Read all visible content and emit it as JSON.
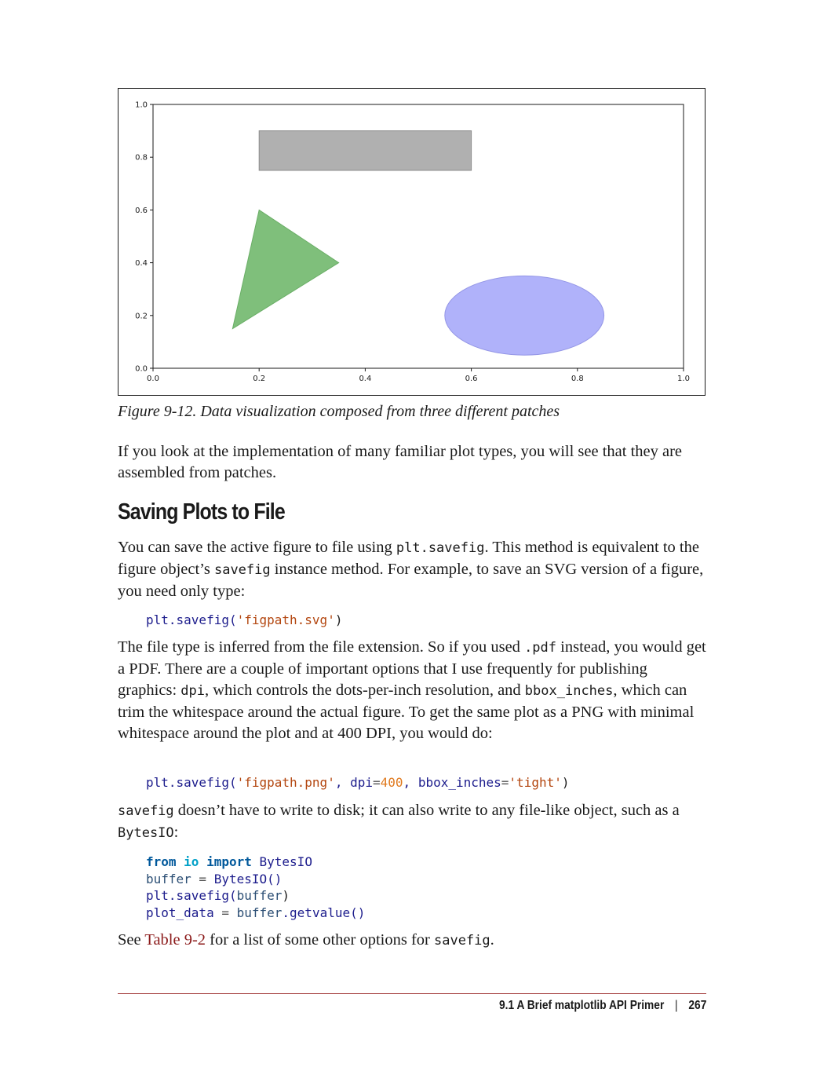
{
  "figure": {
    "caption": "Figure 9-12. Data visualization composed from three different patches",
    "chart_data": {
      "type": "patches",
      "xlim": [
        0.0,
        1.0
      ],
      "ylim": [
        0.0,
        1.0
      ],
      "x_ticks": [
        "0.0",
        "0.2",
        "0.4",
        "0.6",
        "0.8",
        "1.0"
      ],
      "y_ticks": [
        "0.0",
        "0.2",
        "0.4",
        "0.6",
        "0.8",
        "1.0"
      ],
      "grid": false,
      "patches": [
        {
          "kind": "rectangle",
          "xy": [
            0.2,
            0.75
          ],
          "width": 0.4,
          "height": 0.15,
          "color": "#b0b0b0"
        },
        {
          "kind": "circle",
          "center": [
            0.7,
            0.2
          ],
          "radius": 0.15,
          "color": "#b0b2fa"
        },
        {
          "kind": "polygon",
          "points": [
            [
              0.15,
              0.15
            ],
            [
              0.35,
              0.4
            ],
            [
              0.2,
              0.6
            ]
          ],
          "color": "#7fbf7b"
        }
      ]
    }
  },
  "para1": "If you look at the implementation of many familiar plot types, you will see that they are assembled from patches.",
  "heading": "Saving Plots to File",
  "para2": {
    "t1": "You can save the active figure to file using ",
    "c1": "plt.savefig",
    "t2": ". This method is equivalent to the figure object’s ",
    "c2": "savefig",
    "t3": " instance method. For example, to save an SVG version of a figure, you need only type:"
  },
  "code1": {
    "a": "plt.savefig(",
    "b": "'figpath.svg'",
    "c": ")"
  },
  "para3": {
    "t1": "The file type is inferred from the file extension. So if you used ",
    "c1": ".pdf",
    "t2": " instead, you would get a PDF. There are a couple of important options that I use frequently for publishing graphics: ",
    "c2": "dpi",
    "t3": ", which controls the dots-per-inch resolution, and ",
    "c3": "bbox_inches",
    "t4": ", which can trim the whitespace around the actual figure. To get the same plot as a PNG with minimal whitespace around the plot and at 400 DPI, you would do:"
  },
  "code2": {
    "a": "plt.savefig(",
    "b": "'figpath.png'",
    "c": ", dpi",
    "d": "=",
    "e": "400",
    "f": ", bbox_inches",
    "g": "=",
    "h": "'tight'",
    "i": ")"
  },
  "para4": {
    "c1": "savefig",
    "t1": " doesn’t have to write to disk; it can also write to any file-like object, such as a ",
    "c2": "BytesIO",
    "t2": ":"
  },
  "code3": {
    "l1_kw1": "from",
    "l1_mod": "io",
    "l1_kw2": "import",
    "l1_name": "BytesIO",
    "l2_a": "buffer",
    "l2_b": " = ",
    "l2_c": "BytesIO()",
    "l3_a": "plt.savefig(",
    "l3_b": "buffer",
    "l3_c": ")",
    "l4_a": "plot_data",
    "l4_b": " = ",
    "l4_c": "buffer",
    "l4_d": ".getvalue()"
  },
  "para5": {
    "t1": "See ",
    "link": "Table 9-2",
    "t2": " for a list of some other options for ",
    "c1": "savefig",
    "t3": "."
  },
  "footer": {
    "section": "9.1 A Brief matplotlib API Primer",
    "separator": "|",
    "page": "267"
  }
}
